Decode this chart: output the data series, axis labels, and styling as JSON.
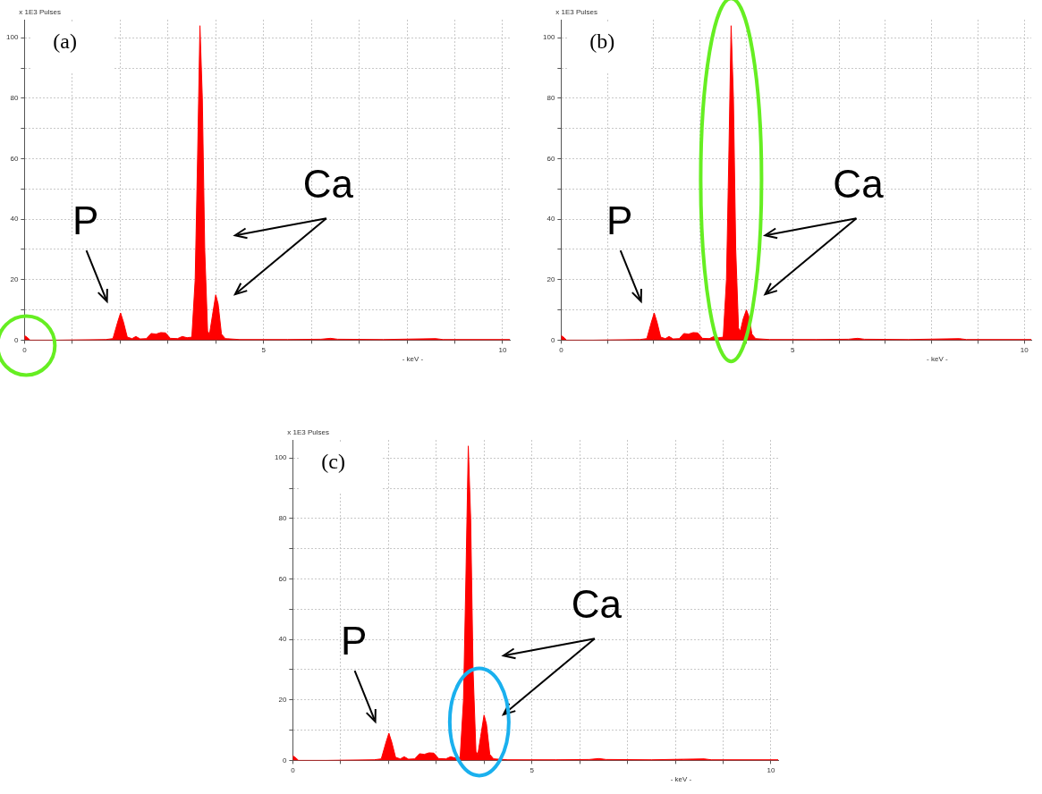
{
  "chart_data": [
    {
      "type": "area",
      "title": "(a)",
      "xlabel": "- keV -",
      "ylabel": "x 1E3 Pulses",
      "color": "#ff0000",
      "grid": true,
      "x": [
        0,
        0.05,
        0.12,
        0.7,
        1.7,
        1.85,
        1.95,
        2.01,
        2.07,
        2.15,
        2.25,
        2.33,
        2.42,
        2.55,
        2.65,
        2.75,
        2.85,
        2.95,
        3.05,
        3.2,
        3.3,
        3.4,
        3.5,
        3.57,
        3.62,
        3.67,
        3.72,
        3.77,
        3.83,
        3.87,
        3.93,
        4.0,
        4.05,
        4.12,
        4.2,
        4.5,
        5.5,
        6.2,
        6.4,
        6.55,
        7.5,
        8.6,
        8.75,
        10.15
      ],
      "values": [
        1.5,
        1,
        0,
        0,
        0.2,
        0.5,
        6,
        9,
        6,
        1,
        0.5,
        1.2,
        0.4,
        0.5,
        2.2,
        2,
        2.5,
        2.4,
        0.6,
        0.5,
        1.2,
        0.8,
        1,
        20,
        60,
        104,
        80,
        30,
        3,
        2,
        8,
        15,
        12,
        2,
        0.5,
        0.2,
        0.2,
        0.3,
        0.6,
        0.3,
        0.2,
        0.5,
        0.2,
        0.2
      ],
      "xlim": [
        0,
        10.15
      ],
      "ylim": [
        0,
        106
      ],
      "xticks": [
        0,
        {
          "value": 1,
          "label": null
        },
        {
          "value": 2,
          "label": null
        },
        {
          "value": 3,
          "label": null
        },
        {
          "value": 4,
          "label": null
        },
        5,
        {
          "value": 6,
          "label": null
        },
        {
          "value": 7,
          "label": null
        },
        {
          "value": 8,
          "label": null
        },
        {
          "value": 9,
          "label": null
        },
        10
      ],
      "yticks": [
        0,
        {
          "value": 10,
          "label": null
        },
        20,
        {
          "value": 30,
          "label": null
        },
        40,
        {
          "value": 50,
          "label": null
        },
        60,
        {
          "value": 70,
          "label": null
        },
        80,
        {
          "value": 90,
          "label": null
        },
        100
      ],
      "annotations": [
        "P",
        "Ca"
      ]
    },
    {
      "type": "area",
      "title": "(b)",
      "xlabel": "- keV -",
      "ylabel": "x 1E3 Pulses",
      "color": "#ff0000",
      "grid": true,
      "x": [
        0,
        0.05,
        0.12,
        0.7,
        1.7,
        1.85,
        1.95,
        2.01,
        2.07,
        2.15,
        2.25,
        2.33,
        2.42,
        2.55,
        2.65,
        2.75,
        2.85,
        2.95,
        3.05,
        3.2,
        3.3,
        3.4,
        3.5,
        3.57,
        3.62,
        3.67,
        3.72,
        3.77,
        3.83,
        3.87,
        3.93,
        4.0,
        4.05,
        4.12,
        4.2,
        4.5,
        5.5,
        6.2,
        6.4,
        6.55,
        7.5,
        8.6,
        8.75,
        10.15
      ],
      "values": [
        1.5,
        1,
        0,
        0,
        0.2,
        0.5,
        6,
        9,
        6,
        1,
        0.5,
        1.2,
        0.4,
        0.5,
        2.2,
        2,
        2.5,
        2.4,
        0.6,
        0.5,
        1.2,
        0.8,
        1,
        20,
        60,
        104,
        80,
        30,
        4,
        3,
        7,
        10,
        8,
        2,
        0.5,
        0.2,
        0.2,
        0.3,
        0.6,
        0.3,
        0.2,
        0.5,
        0.2,
        0.2
      ],
      "xlim": [
        0,
        10.15
      ],
      "ylim": [
        0,
        106
      ],
      "xticks": [
        0,
        {
          "value": 1,
          "label": null
        },
        {
          "value": 2,
          "label": null
        },
        {
          "value": 3,
          "label": null
        },
        {
          "value": 4,
          "label": null
        },
        5,
        {
          "value": 6,
          "label": null
        },
        {
          "value": 7,
          "label": null
        },
        {
          "value": 8,
          "label": null
        },
        {
          "value": 9,
          "label": null
        },
        10
      ],
      "yticks": [
        0,
        {
          "value": 10,
          "label": null
        },
        20,
        {
          "value": 30,
          "label": null
        },
        40,
        {
          "value": 50,
          "label": null
        },
        60,
        {
          "value": 70,
          "label": null
        },
        80,
        {
          "value": 90,
          "label": null
        },
        100
      ],
      "annotations": [
        "P",
        "Ca"
      ]
    },
    {
      "type": "area",
      "title": "(c)",
      "xlabel": "- keV -",
      "ylabel": "x 1E3 Pulses",
      "color": "#ff0000",
      "grid": true,
      "x": [
        0,
        0.05,
        0.12,
        0.7,
        1.7,
        1.85,
        1.95,
        2.01,
        2.07,
        2.15,
        2.25,
        2.33,
        2.42,
        2.55,
        2.65,
        2.75,
        2.85,
        2.95,
        3.05,
        3.2,
        3.3,
        3.4,
        3.5,
        3.57,
        3.62,
        3.67,
        3.72,
        3.77,
        3.83,
        3.87,
        3.93,
        4.0,
        4.05,
        4.12,
        4.2,
        4.5,
        5.5,
        6.2,
        6.4,
        6.55,
        7.5,
        8.6,
        8.75,
        10.15
      ],
      "values": [
        1.5,
        1,
        0,
        0,
        0.2,
        0.5,
        6,
        9,
        6,
        1,
        0.5,
        1.2,
        0.4,
        0.5,
        2.2,
        2,
        2.5,
        2.4,
        0.6,
        0.5,
        1.2,
        0.8,
        1,
        20,
        60,
        104,
        80,
        30,
        3,
        2,
        8,
        15,
        12,
        2,
        0.5,
        0.2,
        0.2,
        0.3,
        0.6,
        0.3,
        0.2,
        0.5,
        0.2,
        0.2
      ],
      "xlim": [
        0,
        10.15
      ],
      "ylim": [
        0,
        106
      ],
      "xticks": [
        0,
        {
          "value": 1,
          "label": null
        },
        {
          "value": 2,
          "label": null
        },
        {
          "value": 3,
          "label": null
        },
        {
          "value": 4,
          "label": null
        },
        5,
        {
          "value": 6,
          "label": null
        },
        {
          "value": 7,
          "label": null
        },
        {
          "value": 8,
          "label": null
        },
        {
          "value": 9,
          "label": null
        },
        10
      ],
      "yticks": [
        0,
        {
          "value": 10,
          "label": null
        },
        20,
        {
          "value": 30,
          "label": null
        },
        40,
        {
          "value": 50,
          "label": null
        },
        60,
        {
          "value": 70,
          "label": null
        },
        80,
        {
          "value": 90,
          "label": null
        },
        100
      ],
      "annotations": [
        "P",
        "Ca"
      ]
    }
  ]
}
